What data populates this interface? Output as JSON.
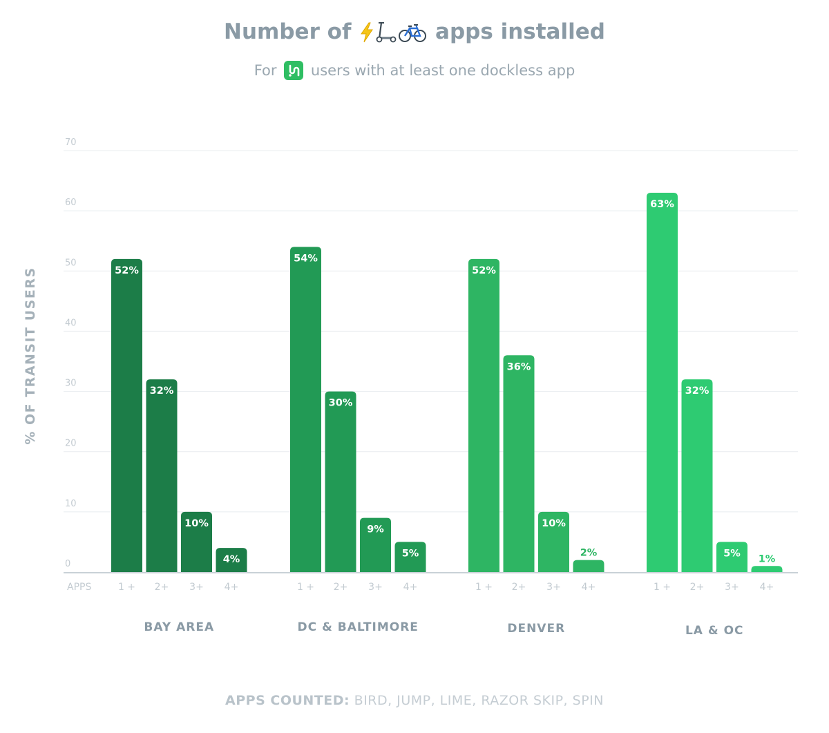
{
  "title": {
    "before": "Number of",
    "after": "apps installed",
    "icons": [
      "lightning-emoji",
      "kick-scooter-emoji",
      "bicycle-emoji"
    ]
  },
  "subtitle": {
    "before": "For",
    "after": "users with at least one dockless app",
    "logo_icon": "transit-app-logo"
  },
  "footer": {
    "label": "APPS COUNTED:",
    "text": "BIRD, JUMP, LIME, RAZOR SKIP, SPIN"
  },
  "chart_data": {
    "type": "bar",
    "ylabel": "% OF TRANSIT USERS",
    "ylim": [
      0,
      70
    ],
    "yticks": [
      0,
      10,
      20,
      30,
      40,
      50,
      60,
      70
    ],
    "grid": true,
    "x_axis_label": "APPS",
    "categories": [
      "1 +",
      "2+",
      "3+",
      "4+"
    ],
    "groups": [
      {
        "name": "BAY AREA",
        "values": [
          52,
          32,
          10,
          4
        ],
        "labels": [
          "52%",
          "32%",
          "10%",
          "4%"
        ],
        "color": "#1c7d48"
      },
      {
        "name": "DC & BALTIMORE",
        "values": [
          54,
          30,
          9,
          5
        ],
        "labels": [
          "54%",
          "30%",
          "9%",
          "5%"
        ],
        "color": "#229a55"
      },
      {
        "name": "DENVER",
        "values": [
          52,
          36,
          10,
          2
        ],
        "labels": [
          "52%",
          "36%",
          "10%",
          "2%"
        ],
        "color": "#2eb563"
      },
      {
        "name": "LA & OC",
        "values": [
          63,
          32,
          5,
          1
        ],
        "labels": [
          "63%",
          "32%",
          "5%",
          "1%"
        ],
        "color": "#2ecb72"
      }
    ]
  }
}
